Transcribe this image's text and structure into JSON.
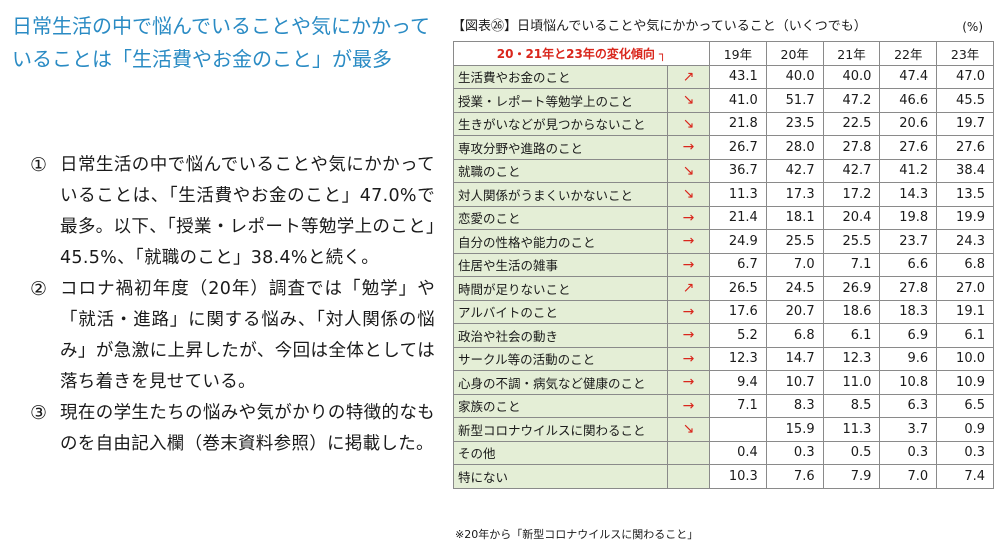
{
  "headline": "日常生活の中で悩んでいることや気にかかっていることは「生活費やお金のこと」が最多",
  "points": [
    {
      "marker": "①",
      "text": "日常生活の中で悩んでいることや気にかかっていることは、「生活費やお金のこと」47.0%で最多。以下、「授業・レポート等勉学上のこと」45.5%、「就職のこと」38.4%と続く。"
    },
    {
      "marker": "②",
      "text": "コロナ禍初年度（20年）調査では「勉学」や「就活・進路」に関する悩み、「対人関係の悩み」が急激に上昇したが、今回は全体としては落ち着きを見せている。"
    },
    {
      "marker": "③",
      "text": "現在の学生たちの悩みや気がかりの特徴的なものを自由記入欄（巻末資料参照）に掲載した。"
    }
  ],
  "figure": {
    "title": "【図表㉖】日頃悩んでいることや気にかかっていること（いくつでも）",
    "unit": "(%)",
    "trend_header": "20・21年と23年の変化傾向 ┐",
    "years": [
      "19年",
      "20年",
      "21年",
      "22年",
      "23年"
    ],
    "rows": [
      {
        "label": "生活費やお金のこと",
        "trend": "↗",
        "values": [
          "43.1",
          "40.0",
          "40.0",
          "47.4",
          "47.0"
        ]
      },
      {
        "label": "授業・レポート等勉学上のこと",
        "trend": "↘",
        "values": [
          "41.0",
          "51.7",
          "47.2",
          "46.6",
          "45.5"
        ]
      },
      {
        "label": "生きがいなどが見つからないこと",
        "trend": "↘",
        "values": [
          "21.8",
          "23.5",
          "22.5",
          "20.6",
          "19.7"
        ]
      },
      {
        "label": "専攻分野や進路のこと",
        "trend": "→",
        "values": [
          "26.7",
          "28.0",
          "27.8",
          "27.6",
          "27.6"
        ]
      },
      {
        "label": "就職のこと",
        "trend": "↘",
        "values": [
          "36.7",
          "42.7",
          "42.7",
          "41.2",
          "38.4"
        ]
      },
      {
        "label": "対人関係がうまくいかないこと",
        "trend": "↘",
        "values": [
          "11.3",
          "17.3",
          "17.2",
          "14.3",
          "13.5"
        ]
      },
      {
        "label": "恋愛のこと",
        "trend": "→",
        "values": [
          "21.4",
          "18.1",
          "20.4",
          "19.8",
          "19.9"
        ]
      },
      {
        "label": "自分の性格や能力のこと",
        "trend": "→",
        "values": [
          "24.9",
          "25.5",
          "25.5",
          "23.7",
          "24.3"
        ]
      },
      {
        "label": "住居や生活の雑事",
        "trend": "→",
        "values": [
          "6.7",
          "7.0",
          "7.1",
          "6.6",
          "6.8"
        ]
      },
      {
        "label": "時間が足りないこと",
        "trend": "↗",
        "values": [
          "26.5",
          "24.5",
          "26.9",
          "27.8",
          "27.0"
        ]
      },
      {
        "label": "アルバイトのこと",
        "trend": "→",
        "values": [
          "17.6",
          "20.7",
          "18.6",
          "18.3",
          "19.1"
        ]
      },
      {
        "label": "政治や社会の動き",
        "trend": "→",
        "values": [
          "5.2",
          "6.8",
          "6.1",
          "6.9",
          "6.1"
        ]
      },
      {
        "label": "サークル等の活動のこと",
        "trend": "→",
        "values": [
          "12.3",
          "14.7",
          "12.3",
          "9.6",
          "10.0"
        ]
      },
      {
        "label": "心身の不調・病気など健康のこと",
        "trend": "→",
        "values": [
          "9.4",
          "10.7",
          "11.0",
          "10.8",
          "10.9"
        ]
      },
      {
        "label": "家族のこと",
        "trend": "→",
        "values": [
          "7.1",
          "8.3",
          "8.5",
          "6.3",
          "6.5"
        ]
      },
      {
        "label": "新型コロナウイルスに関わること",
        "trend": "↘",
        "values": [
          "",
          "15.9",
          "11.3",
          "3.7",
          "0.9"
        ]
      },
      {
        "label": "その他",
        "trend": "",
        "values": [
          "0.4",
          "0.3",
          "0.5",
          "0.3",
          "0.3"
        ]
      },
      {
        "label": "特にない",
        "trend": "",
        "values": [
          "10.3",
          "7.6",
          "7.9",
          "7.0",
          "7.4"
        ]
      }
    ],
    "note": "※20年から「新型コロナウイルスに関わること」"
  }
}
